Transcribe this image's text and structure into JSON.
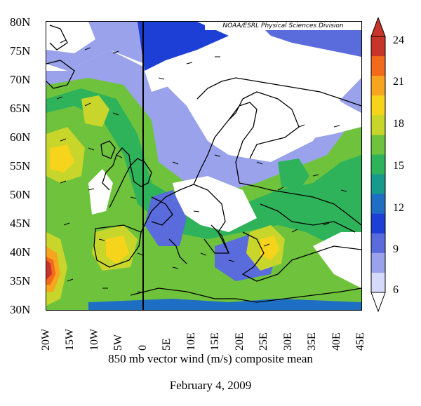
{
  "map": {
    "credit": "NOAA/ESRL Physical Sciences Division",
    "lat_labels": [
      "80N",
      "75N",
      "70N",
      "65N",
      "60N",
      "55N",
      "50N",
      "45N",
      "40N",
      "35N",
      "30N"
    ],
    "lon_labels": [
      "20W",
      "15W",
      "10W",
      "5W",
      "0",
      "5E",
      "10E",
      "15E",
      "20E",
      "25E",
      "30E",
      "35E",
      "40E",
      "45E"
    ],
    "extent": {
      "lon_min": -20,
      "lon_max": 45,
      "lat_min": 30,
      "lat_max": 80
    },
    "colorbar": {
      "ticks": [
        "24",
        "21",
        "18",
        "15",
        "12",
        "9",
        "6"
      ],
      "colors": [
        "#c7342a",
        "#f26a1c",
        "#f7a51f",
        "#f6d41b",
        "#c8d62b",
        "#6fc33c",
        "#2fb35a",
        "#169a8c",
        "#1e6fc4",
        "#1e3fd6",
        "#5a6bdc",
        "#9aa2ec",
        "#d6dafa"
      ]
    },
    "caption": "850 mb vector wind (m/s) composite mean",
    "date": "February 4, 2009"
  }
}
